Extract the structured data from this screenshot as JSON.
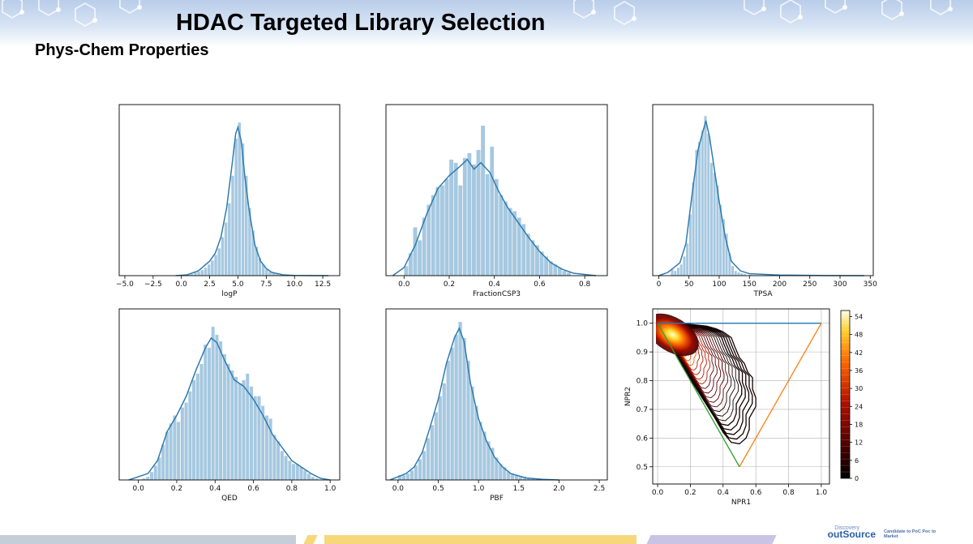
{
  "slide": {
    "title": "HDAC Targeted Library Selection",
    "subtitle": "Phys-Chem Properties",
    "logo_top": "Discovery",
    "logo_main": "outSource",
    "tagline": "Candidate to PoC Poc to Market"
  },
  "colors": {
    "hist_fill": "#a6c8e0",
    "kde_line": "#2f7bb0",
    "triangle_top": "#1f77b4",
    "triangle_right": "#ff7f0e",
    "triangle_left": "#2ca02c",
    "contour_dark": "#0a0000",
    "contour_hot": "#ff5a00",
    "footer_gray": "#c5cdd8",
    "footer_yellow": "#f6d77a",
    "footer_purple": "#c9c4e4"
  },
  "chart_data": [
    {
      "type": "histogram",
      "xlabel": "logP",
      "xlim": [
        -5.5,
        14
      ],
      "xticks": [
        -5.0,
        -2.5,
        0.0,
        2.5,
        5.0,
        7.5,
        10.0,
        12.5
      ],
      "x_tick_labels": [
        "−5.0",
        "−2.5",
        "0.0",
        "2.5",
        "5.0",
        "7.5",
        "10.0",
        "12.5"
      ],
      "bin_width": 0.3,
      "bins": [
        [
          0.5,
          0.005
        ],
        [
          0.8,
          0.01
        ],
        [
          1.1,
          0.02
        ],
        [
          1.4,
          0.025
        ],
        [
          1.7,
          0.035
        ],
        [
          2.0,
          0.05
        ],
        [
          2.3,
          0.07
        ],
        [
          2.6,
          0.095
        ],
        [
          2.9,
          0.13
        ],
        [
          3.2,
          0.17
        ],
        [
          3.5,
          0.24
        ],
        [
          3.8,
          0.33
        ],
        [
          4.1,
          0.45
        ],
        [
          4.4,
          0.62
        ],
        [
          4.7,
          0.85
        ],
        [
          5.0,
          0.95
        ],
        [
          5.3,
          0.82
        ],
        [
          5.6,
          0.62
        ],
        [
          5.9,
          0.42
        ],
        [
          6.2,
          0.28
        ],
        [
          6.5,
          0.18
        ],
        [
          6.8,
          0.11
        ],
        [
          7.1,
          0.07
        ],
        [
          7.4,
          0.04
        ],
        [
          7.7,
          0.025
        ],
        [
          8.0,
          0.015
        ],
        [
          8.3,
          0.01
        ],
        [
          8.6,
          0.005
        ]
      ],
      "kde": [
        [
          -0.5,
          0.0
        ],
        [
          0.5,
          0.005
        ],
        [
          1.5,
          0.03
        ],
        [
          2.5,
          0.09
        ],
        [
          3.0,
          0.14
        ],
        [
          3.5,
          0.24
        ],
        [
          4.0,
          0.42
        ],
        [
          4.5,
          0.7
        ],
        [
          4.8,
          0.88
        ],
        [
          5.0,
          0.92
        ],
        [
          5.3,
          0.83
        ],
        [
          5.6,
          0.62
        ],
        [
          6.0,
          0.4
        ],
        [
          6.5,
          0.19
        ],
        [
          7.0,
          0.09
        ],
        [
          7.5,
          0.045
        ],
        [
          8.0,
          0.02
        ],
        [
          9.0,
          0.005
        ],
        [
          10.0,
          0.001
        ],
        [
          13.0,
          0.0
        ]
      ]
    },
    {
      "type": "histogram",
      "xlabel": "FractionCSP3",
      "xlim": [
        -0.08,
        0.9
      ],
      "xticks": [
        0.0,
        0.2,
        0.4,
        0.6,
        0.8
      ],
      "x_tick_labels": [
        "0.0",
        "0.2",
        "0.4",
        "0.6",
        "0.8"
      ],
      "bin_width": 0.02,
      "bins": [
        [
          0.0,
          0.06
        ],
        [
          0.02,
          0.14
        ],
        [
          0.04,
          0.3
        ],
        [
          0.06,
          0.22
        ],
        [
          0.08,
          0.36
        ],
        [
          0.1,
          0.44
        ],
        [
          0.12,
          0.5
        ],
        [
          0.14,
          0.55
        ],
        [
          0.16,
          0.56
        ],
        [
          0.18,
          0.6
        ],
        [
          0.2,
          0.72
        ],
        [
          0.22,
          0.7
        ],
        [
          0.24,
          0.56
        ],
        [
          0.26,
          0.73
        ],
        [
          0.28,
          0.76
        ],
        [
          0.3,
          0.69
        ],
        [
          0.32,
          0.78
        ],
        [
          0.34,
          0.93
        ],
        [
          0.36,
          0.63
        ],
        [
          0.38,
          0.8
        ],
        [
          0.4,
          0.6
        ],
        [
          0.42,
          0.5
        ],
        [
          0.44,
          0.46
        ],
        [
          0.46,
          0.42
        ],
        [
          0.48,
          0.4
        ],
        [
          0.5,
          0.36
        ],
        [
          0.52,
          0.32
        ],
        [
          0.54,
          0.26
        ],
        [
          0.56,
          0.22
        ],
        [
          0.58,
          0.19
        ],
        [
          0.6,
          0.15
        ],
        [
          0.62,
          0.12
        ],
        [
          0.64,
          0.09
        ],
        [
          0.66,
          0.07
        ],
        [
          0.68,
          0.05
        ],
        [
          0.7,
          0.03
        ],
        [
          0.72,
          0.02
        ]
      ],
      "kde": [
        [
          -0.05,
          0.0
        ],
        [
          0.0,
          0.05
        ],
        [
          0.05,
          0.19
        ],
        [
          0.1,
          0.38
        ],
        [
          0.15,
          0.54
        ],
        [
          0.2,
          0.62
        ],
        [
          0.25,
          0.68
        ],
        [
          0.28,
          0.72
        ],
        [
          0.31,
          0.66
        ],
        [
          0.34,
          0.7
        ],
        [
          0.38,
          0.64
        ],
        [
          0.42,
          0.52
        ],
        [
          0.46,
          0.42
        ],
        [
          0.5,
          0.34
        ],
        [
          0.55,
          0.24
        ],
        [
          0.6,
          0.15
        ],
        [
          0.65,
          0.08
        ],
        [
          0.7,
          0.04
        ],
        [
          0.75,
          0.015
        ],
        [
          0.85,
          0.0
        ]
      ]
    },
    {
      "type": "histogram",
      "xlabel": "TPSA",
      "xlim": [
        -10,
        355
      ],
      "xticks": [
        0,
        50,
        100,
        150,
        200,
        250,
        300,
        350
      ],
      "x_tick_labels": [
        "0",
        "50",
        "100",
        "150",
        "200",
        "250",
        "300",
        "350"
      ],
      "bin_width": 5,
      "bins": [
        [
          20,
          0.04
        ],
        [
          25,
          0.03
        ],
        [
          30,
          0.05
        ],
        [
          35,
          0.07
        ],
        [
          40,
          0.12
        ],
        [
          45,
          0.2
        ],
        [
          50,
          0.38
        ],
        [
          55,
          0.58
        ],
        [
          60,
          0.78
        ],
        [
          65,
          0.83
        ],
        [
          70,
          0.9
        ],
        [
          75,
          0.99
        ],
        [
          80,
          0.88
        ],
        [
          85,
          0.7
        ],
        [
          90,
          0.64
        ],
        [
          95,
          0.56
        ],
        [
          100,
          0.44
        ],
        [
          105,
          0.35
        ],
        [
          110,
          0.26
        ],
        [
          115,
          0.14
        ],
        [
          120,
          0.06
        ],
        [
          125,
          0.03
        ],
        [
          130,
          0.02
        ],
        [
          135,
          0.015
        ],
        [
          140,
          0.01
        ],
        [
          150,
          0.005
        ]
      ],
      "kde": [
        [
          0,
          0.0
        ],
        [
          15,
          0.02
        ],
        [
          25,
          0.05
        ],
        [
          35,
          0.08
        ],
        [
          45,
          0.2
        ],
        [
          55,
          0.5
        ],
        [
          65,
          0.78
        ],
        [
          72,
          0.88
        ],
        [
          78,
          0.96
        ],
        [
          84,
          0.86
        ],
        [
          92,
          0.66
        ],
        [
          100,
          0.46
        ],
        [
          110,
          0.24
        ],
        [
          120,
          0.09
        ],
        [
          135,
          0.03
        ],
        [
          150,
          0.012
        ],
        [
          200,
          0.004
        ],
        [
          260,
          0.001
        ],
        [
          340,
          0.0
        ]
      ]
    },
    {
      "type": "histogram",
      "xlabel": "QED",
      "xlim": [
        -0.1,
        1.05
      ],
      "xticks": [
        0.0,
        0.2,
        0.4,
        0.6,
        0.8,
        1.0
      ],
      "x_tick_labels": [
        "0.0",
        "0.2",
        "0.4",
        "0.6",
        "0.8",
        "1.0"
      ],
      "bin_width": 0.02,
      "bins": [
        [
          0.02,
          0.01
        ],
        [
          0.04,
          0.02
        ],
        [
          0.06,
          0.05
        ],
        [
          0.08,
          0.09
        ],
        [
          0.1,
          0.14
        ],
        [
          0.12,
          0.22
        ],
        [
          0.14,
          0.3
        ],
        [
          0.16,
          0.35
        ],
        [
          0.18,
          0.4
        ],
        [
          0.2,
          0.36
        ],
        [
          0.22,
          0.45
        ],
        [
          0.24,
          0.48
        ],
        [
          0.26,
          0.55
        ],
        [
          0.28,
          0.62
        ],
        [
          0.3,
          0.66
        ],
        [
          0.32,
          0.72
        ],
        [
          0.34,
          0.84
        ],
        [
          0.36,
          0.82
        ],
        [
          0.38,
          0.95
        ],
        [
          0.4,
          0.9
        ],
        [
          0.42,
          0.86
        ],
        [
          0.44,
          0.78
        ],
        [
          0.46,
          0.72
        ],
        [
          0.48,
          0.68
        ],
        [
          0.5,
          0.64
        ],
        [
          0.52,
          0.6
        ],
        [
          0.54,
          0.62
        ],
        [
          0.56,
          0.66
        ],
        [
          0.58,
          0.58
        ],
        [
          0.6,
          0.52
        ],
        [
          0.62,
          0.52
        ],
        [
          0.64,
          0.46
        ],
        [
          0.66,
          0.4
        ],
        [
          0.68,
          0.38
        ],
        [
          0.7,
          0.28
        ],
        [
          0.72,
          0.24
        ],
        [
          0.74,
          0.18
        ],
        [
          0.76,
          0.15
        ],
        [
          0.78,
          0.12
        ],
        [
          0.8,
          0.1
        ],
        [
          0.82,
          0.1
        ],
        [
          0.84,
          0.08
        ],
        [
          0.86,
          0.06
        ],
        [
          0.88,
          0.04
        ],
        [
          0.9,
          0.02
        ],
        [
          0.92,
          0.01
        ]
      ],
      "kde": [
        [
          -0.05,
          0.0
        ],
        [
          0.05,
          0.04
        ],
        [
          0.1,
          0.12
        ],
        [
          0.15,
          0.3
        ],
        [
          0.2,
          0.4
        ],
        [
          0.25,
          0.52
        ],
        [
          0.3,
          0.68
        ],
        [
          0.35,
          0.82
        ],
        [
          0.38,
          0.88
        ],
        [
          0.41,
          0.85
        ],
        [
          0.45,
          0.74
        ],
        [
          0.5,
          0.62
        ],
        [
          0.55,
          0.58
        ],
        [
          0.6,
          0.5
        ],
        [
          0.65,
          0.4
        ],
        [
          0.7,
          0.28
        ],
        [
          0.75,
          0.2
        ],
        [
          0.8,
          0.12
        ],
        [
          0.85,
          0.08
        ],
        [
          0.9,
          0.04
        ],
        [
          0.95,
          0.01
        ],
        [
          1.0,
          0.0
        ]
      ]
    },
    {
      "type": "histogram",
      "xlabel": "PBF",
      "xlim": [
        -0.15,
        2.6
      ],
      "xticks": [
        0.0,
        0.5,
        1.0,
        1.5,
        2.0,
        2.5
      ],
      "x_tick_labels": [
        "0.0",
        "0.5",
        "1.0",
        "1.5",
        "2.0",
        "2.5"
      ],
      "bin_width": 0.05,
      "bins": [
        [
          0.0,
          0.03
        ],
        [
          0.05,
          0.03
        ],
        [
          0.1,
          0.04
        ],
        [
          0.15,
          0.06
        ],
        [
          0.2,
          0.09
        ],
        [
          0.25,
          0.13
        ],
        [
          0.3,
          0.18
        ],
        [
          0.35,
          0.26
        ],
        [
          0.4,
          0.34
        ],
        [
          0.45,
          0.42
        ],
        [
          0.5,
          0.52
        ],
        [
          0.55,
          0.6
        ],
        [
          0.6,
          0.74
        ],
        [
          0.65,
          0.82
        ],
        [
          0.7,
          0.9
        ],
        [
          0.75,
          0.98
        ],
        [
          0.8,
          0.88
        ],
        [
          0.85,
          0.74
        ],
        [
          0.9,
          0.58
        ],
        [
          0.95,
          0.46
        ],
        [
          1.0,
          0.36
        ],
        [
          1.05,
          0.3
        ],
        [
          1.1,
          0.24
        ],
        [
          1.15,
          0.2
        ],
        [
          1.2,
          0.14
        ],
        [
          1.25,
          0.1
        ],
        [
          1.3,
          0.08
        ],
        [
          1.35,
          0.05
        ],
        [
          1.4,
          0.04
        ],
        [
          1.45,
          0.03
        ],
        [
          1.5,
          0.02
        ],
        [
          1.55,
          0.02
        ],
        [
          1.6,
          0.01
        ],
        [
          1.65,
          0.01
        ]
      ],
      "kde": [
        [
          -0.1,
          0.0
        ],
        [
          0.0,
          0.02
        ],
        [
          0.1,
          0.04
        ],
        [
          0.2,
          0.08
        ],
        [
          0.3,
          0.17
        ],
        [
          0.4,
          0.33
        ],
        [
          0.5,
          0.5
        ],
        [
          0.6,
          0.72
        ],
        [
          0.7,
          0.88
        ],
        [
          0.76,
          0.94
        ],
        [
          0.82,
          0.86
        ],
        [
          0.9,
          0.6
        ],
        [
          1.0,
          0.38
        ],
        [
          1.1,
          0.24
        ],
        [
          1.2,
          0.14
        ],
        [
          1.3,
          0.08
        ],
        [
          1.4,
          0.04
        ],
        [
          1.5,
          0.025
        ],
        [
          1.6,
          0.012
        ],
        [
          1.8,
          0.004
        ],
        [
          2.0,
          0.0
        ]
      ]
    },
    {
      "type": "contour",
      "xlabel": "NPR1",
      "ylabel": "NPR2",
      "xlim": [
        -0.03,
        1.05
      ],
      "ylim": [
        0.44,
        1.05
      ],
      "xticks": [
        0.0,
        0.2,
        0.4,
        0.6,
        0.8,
        1.0
      ],
      "x_tick_labels": [
        "0.0",
        "0.2",
        "0.4",
        "0.6",
        "0.8",
        "1.0"
      ],
      "yticks": [
        0.5,
        0.6,
        0.7,
        0.8,
        0.9,
        1.0
      ],
      "y_tick_labels": [
        "0.5",
        "0.6",
        "0.7",
        "0.8",
        "0.9",
        "1.0"
      ],
      "triangle": {
        "top_edge": [
          [
            0.0,
            1.0
          ],
          [
            1.0,
            1.0
          ]
        ],
        "right_edge": [
          [
            0.5,
            0.5
          ],
          [
            1.0,
            1.0
          ]
        ],
        "left_edge": [
          [
            0.0,
            1.0
          ],
          [
            0.5,
            0.5
          ]
        ]
      },
      "density_peak": [
        0.09,
        0.96
      ],
      "outer_contour": [
        [
          0.0,
          1.02
        ],
        [
          0.05,
          1.01
        ],
        [
          0.12,
          1.0
        ],
        [
          0.22,
          0.995
        ],
        [
          0.3,
          0.99
        ],
        [
          0.36,
          0.98
        ],
        [
          0.4,
          0.97
        ],
        [
          0.45,
          0.95
        ],
        [
          0.47,
          0.92
        ],
        [
          0.5,
          0.88
        ],
        [
          0.53,
          0.86
        ],
        [
          0.55,
          0.83
        ],
        [
          0.58,
          0.81
        ],
        [
          0.58,
          0.77
        ],
        [
          0.6,
          0.74
        ],
        [
          0.6,
          0.71
        ],
        [
          0.58,
          0.69
        ],
        [
          0.56,
          0.67
        ],
        [
          0.56,
          0.63
        ],
        [
          0.54,
          0.6
        ],
        [
          0.5,
          0.58
        ],
        [
          0.45,
          0.585
        ],
        [
          0.4,
          0.62
        ],
        [
          0.35,
          0.67
        ],
        [
          0.25,
          0.76
        ],
        [
          0.15,
          0.85
        ],
        [
          0.06,
          0.94
        ],
        [
          0.0,
          1.0
        ]
      ],
      "colorbar": {
        "min": 0,
        "max": 56,
        "ticks": [
          0,
          6,
          12,
          18,
          24,
          30,
          36,
          42,
          48,
          54
        ],
        "tick_labels": [
          "0",
          "6",
          "12",
          "18",
          "24",
          "30",
          "36",
          "42",
          "48",
          "54"
        ]
      }
    }
  ]
}
